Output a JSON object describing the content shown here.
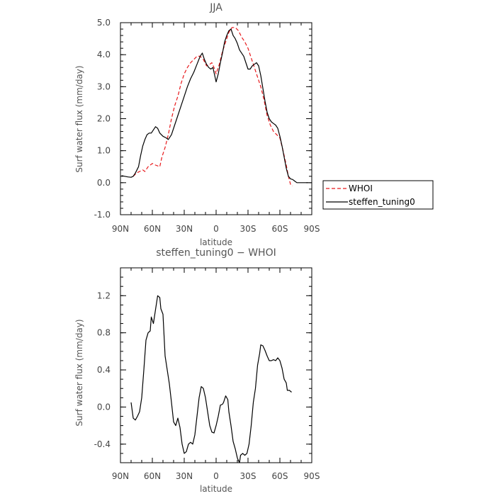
{
  "chart_data": [
    {
      "type": "line",
      "title": "JJA",
      "xlabel": "latitude",
      "ylabel": "Surf water flux (mm/day)",
      "xlim": [
        90,
        -90
      ],
      "ylim": [
        -1.0,
        5.0
      ],
      "x_ticks": [
        "90N",
        "60N",
        "30N",
        "0",
        "30S",
        "60S",
        "90S"
      ],
      "y_ticks": [
        "-1.0",
        "0.0",
        "1.0",
        "2.0",
        "3.0",
        "4.0",
        "5.0"
      ],
      "grid": false,
      "legend_position": "right",
      "legend": [
        "WHOI",
        "steffen_tuning0"
      ],
      "series": [
        {
          "name": "WHOI",
          "color": "#e8191c",
          "dash": "dashed",
          "points": [
            [
              78,
              0.2
            ],
            [
              75,
              0.3
            ],
            [
              72,
              0.35
            ],
            [
              69,
              0.4
            ],
            [
              67,
              0.35
            ],
            [
              64,
              0.5
            ],
            [
              62,
              0.55
            ],
            [
              60,
              0.6
            ],
            [
              57,
              0.55
            ],
            [
              53,
              0.5
            ],
            [
              51,
              0.8
            ],
            [
              48,
              1.1
            ],
            [
              45,
              1.5
            ],
            [
              42,
              2.0
            ],
            [
              39,
              2.4
            ],
            [
              36,
              2.7
            ],
            [
              33,
              3.1
            ],
            [
              30,
              3.4
            ],
            [
              27,
              3.6
            ],
            [
              24,
              3.75
            ],
            [
              21,
              3.85
            ],
            [
              18,
              3.95
            ],
            [
              15,
              3.95
            ],
            [
              12,
              3.85
            ],
            [
              9,
              3.65
            ],
            [
              6,
              3.7
            ],
            [
              4,
              3.75
            ],
            [
              2,
              3.6
            ],
            [
              0,
              3.4
            ],
            [
              -3,
              3.7
            ],
            [
              -6,
              4.1
            ],
            [
              -9,
              4.4
            ],
            [
              -12,
              4.7
            ],
            [
              -15,
              4.85
            ],
            [
              -18,
              4.85
            ],
            [
              -21,
              4.75
            ],
            [
              -24,
              4.55
            ],
            [
              -27,
              4.4
            ],
            [
              -30,
              4.2
            ],
            [
              -33,
              3.9
            ],
            [
              -36,
              3.6
            ],
            [
              -39,
              3.3
            ],
            [
              -42,
              3.0
            ],
            [
              -45,
              2.6
            ],
            [
              -48,
              2.1
            ],
            [
              -51,
              1.8
            ],
            [
              -54,
              1.6
            ],
            [
              -57,
              1.5
            ],
            [
              -60,
              1.4
            ],
            [
              -63,
              1.0
            ],
            [
              -66,
              0.55
            ],
            [
              -68,
              0.2
            ],
            [
              -70,
              -0.05
            ],
            [
              -72,
              -0.1
            ]
          ]
        },
        {
          "name": "steffen_tuning0",
          "color": "#000000",
          "dash": "solid",
          "points": [
            [
              89,
              0.22
            ],
            [
              86,
              0.2
            ],
            [
              83,
              0.18
            ],
            [
              80,
              0.17
            ],
            [
              78,
              0.2
            ],
            [
              76,
              0.3
            ],
            [
              73,
              0.5
            ],
            [
              71,
              0.85
            ],
            [
              69,
              1.15
            ],
            [
              67,
              1.35
            ],
            [
              65,
              1.5
            ],
            [
              63,
              1.55
            ],
            [
              61,
              1.55
            ],
            [
              59,
              1.65
            ],
            [
              57,
              1.75
            ],
            [
              55,
              1.7
            ],
            [
              53,
              1.55
            ],
            [
              50,
              1.45
            ],
            [
              47,
              1.4
            ],
            [
              45,
              1.35
            ],
            [
              42,
              1.5
            ],
            [
              39,
              1.8
            ],
            [
              36,
              2.1
            ],
            [
              33,
              2.4
            ],
            [
              30,
              2.7
            ],
            [
              27,
              3.0
            ],
            [
              24,
              3.25
            ],
            [
              21,
              3.45
            ],
            [
              18,
              3.7
            ],
            [
              15,
              3.95
            ],
            [
              13,
              4.05
            ],
            [
              11,
              3.85
            ],
            [
              9,
              3.7
            ],
            [
              7,
              3.6
            ],
            [
              5,
              3.55
            ],
            [
              3,
              3.6
            ],
            [
              1,
              3.3
            ],
            [
              0,
              3.15
            ],
            [
              -2,
              3.4
            ],
            [
              -4,
              3.75
            ],
            [
              -6,
              4.05
            ],
            [
              -8,
              4.4
            ],
            [
              -10,
              4.6
            ],
            [
              -12,
              4.75
            ],
            [
              -14,
              4.8
            ],
            [
              -16,
              4.6
            ],
            [
              -18,
              4.5
            ],
            [
              -20,
              4.35
            ],
            [
              -22,
              4.15
            ],
            [
              -24,
              4.05
            ],
            [
              -26,
              3.95
            ],
            [
              -28,
              3.75
            ],
            [
              -30,
              3.55
            ],
            [
              -32,
              3.55
            ],
            [
              -34,
              3.65
            ],
            [
              -36,
              3.7
            ],
            [
              -38,
              3.75
            ],
            [
              -40,
              3.65
            ],
            [
              -42,
              3.35
            ],
            [
              -44,
              2.95
            ],
            [
              -46,
              2.55
            ],
            [
              -48,
              2.2
            ],
            [
              -50,
              2.0
            ],
            [
              -52,
              1.9
            ],
            [
              -54,
              1.85
            ],
            [
              -56,
              1.8
            ],
            [
              -58,
              1.7
            ],
            [
              -60,
              1.45
            ],
            [
              -62,
              1.15
            ],
            [
              -64,
              0.8
            ],
            [
              -66,
              0.45
            ],
            [
              -68,
              0.2
            ],
            [
              -70,
              0.12
            ],
            [
              -72,
              0.1
            ],
            [
              -74,
              0.05
            ],
            [
              -76,
              0.0
            ],
            [
              -80,
              0.0
            ],
            [
              -84,
              0.0
            ],
            [
              -87,
              0.0
            ]
          ]
        }
      ]
    },
    {
      "type": "line",
      "title": "steffen_tuning0 − WHOI",
      "xlabel": "latitude",
      "ylabel": "Surf water flux (mm/day)",
      "xlim": [
        90,
        -90
      ],
      "ylim": [
        -0.6,
        1.5
      ],
      "x_ticks": [
        "90N",
        "60N",
        "30N",
        "0",
        "30S",
        "60S",
        "90S"
      ],
      "y_ticks": [
        "-0.4",
        "0.0",
        "0.4",
        "0.8",
        "1.2"
      ],
      "grid": false,
      "series": [
        {
          "name": "",
          "color": "#000000",
          "dash": "solid",
          "points": [
            [
              80,
              0.05
            ],
            [
              78,
              -0.12
            ],
            [
              76,
              -0.14
            ],
            [
              74,
              -0.1
            ],
            [
              72,
              -0.05
            ],
            [
              70,
              0.1
            ],
            [
              68,
              0.4
            ],
            [
              66,
              0.72
            ],
            [
              64,
              0.8
            ],
            [
              62,
              0.82
            ],
            [
              61,
              0.97
            ],
            [
              59,
              0.9
            ],
            [
              57,
              1.05
            ],
            [
              55,
              1.2
            ],
            [
              53,
              1.18
            ],
            [
              52,
              1.06
            ],
            [
              50,
              1.0
            ],
            [
              48,
              0.55
            ],
            [
              46,
              0.4
            ],
            [
              44,
              0.25
            ],
            [
              42,
              0.05
            ],
            [
              40,
              -0.16
            ],
            [
              38,
              -0.2
            ],
            [
              36,
              -0.12
            ],
            [
              34,
              -0.22
            ],
            [
              32,
              -0.4
            ],
            [
              30,
              -0.5
            ],
            [
              28,
              -0.48
            ],
            [
              26,
              -0.4
            ],
            [
              24,
              -0.38
            ],
            [
              22,
              -0.4
            ],
            [
              20,
              -0.3
            ],
            [
              18,
              -0.1
            ],
            [
              16,
              0.1
            ],
            [
              14,
              0.22
            ],
            [
              12,
              0.2
            ],
            [
              10,
              0.1
            ],
            [
              8,
              -0.05
            ],
            [
              6,
              -0.2
            ],
            [
              4,
              -0.27
            ],
            [
              2,
              -0.28
            ],
            [
              0,
              -0.2
            ],
            [
              -2,
              -0.1
            ],
            [
              -4,
              0.02
            ],
            [
              -6,
              0.03
            ],
            [
              -7,
              0.05
            ],
            [
              -9,
              0.12
            ],
            [
              -11,
              0.08
            ],
            [
              -12,
              -0.05
            ],
            [
              -14,
              -0.2
            ],
            [
              -16,
              -0.37
            ],
            [
              -18,
              -0.45
            ],
            [
              -20,
              -0.55
            ],
            [
              -22,
              -0.6
            ],
            [
              -23,
              -0.52
            ],
            [
              -25,
              -0.5
            ],
            [
              -27,
              -0.52
            ],
            [
              -29,
              -0.5
            ],
            [
              -31,
              -0.4
            ],
            [
              -33,
              -0.2
            ],
            [
              -35,
              0.05
            ],
            [
              -37,
              0.2
            ],
            [
              -39,
              0.45
            ],
            [
              -41,
              0.58
            ],
            [
              -42,
              0.67
            ],
            [
              -44,
              0.66
            ],
            [
              -46,
              0.61
            ],
            [
              -48,
              0.55
            ],
            [
              -50,
              0.5
            ],
            [
              -52,
              0.5
            ],
            [
              -54,
              0.51
            ],
            [
              -56,
              0.5
            ],
            [
              -58,
              0.53
            ],
            [
              -60,
              0.5
            ],
            [
              -62,
              0.42
            ],
            [
              -64,
              0.3
            ],
            [
              -66,
              0.26
            ],
            [
              -67,
              0.18
            ],
            [
              -69,
              0.18
            ],
            [
              -71,
              0.16
            ]
          ]
        }
      ]
    }
  ]
}
